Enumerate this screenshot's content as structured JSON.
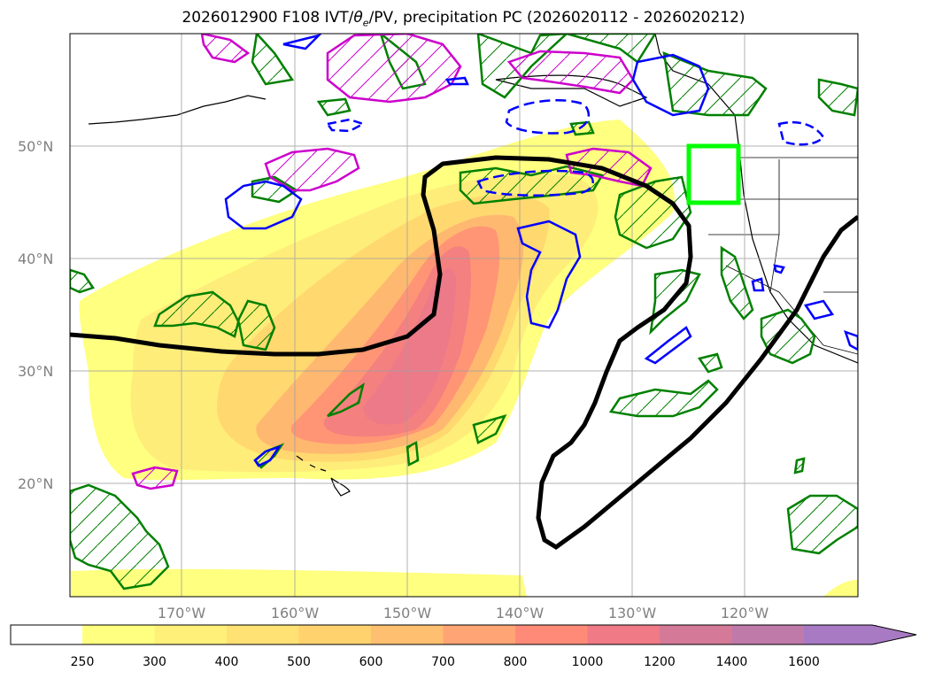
{
  "title": {
    "main": "2026012900 F108 IVT/",
    "theta": "θ",
    "sub": "e",
    "rest": "/PV, precipitation PC (2026020112 - 2026020212)"
  },
  "lat_labels": [
    "50°N",
    "40°N",
    "30°N",
    "20°N"
  ],
  "lon_labels": [
    "170°W",
    "160°W",
    "150°W",
    "140°W",
    "130°W",
    "120°W"
  ],
  "colorbar": {
    "ticks": [
      "250",
      "300",
      "400",
      "500",
      "600",
      "700",
      "800",
      "1000",
      "1200",
      "1400",
      "1600"
    ],
    "colors": [
      "#ffff80",
      "#fff07a",
      "#ffe174",
      "#ffd26e",
      "#ffbf70",
      "#ffa474",
      "#ff8a78",
      "#f07a86",
      "#d47a98",
      "#c07aaa",
      "#a87ac4"
    ]
  },
  "colors": {
    "pv_positive": "#cc00cc",
    "pv_negative": "#0000ff",
    "precip_pc": "#008000",
    "theta_e": "#000000",
    "target_box": "#00ff00"
  }
}
